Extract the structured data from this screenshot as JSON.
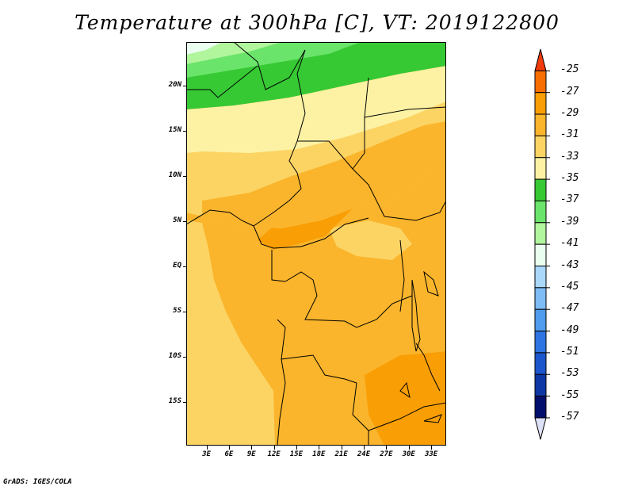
{
  "title": "Temperature at 300hPa [C], VT: 2019122800",
  "credit": "GrADS: IGES/COLA",
  "map": {
    "lat_labels": [
      "20N",
      "15N",
      "10N",
      "5N",
      "EQ",
      "5S",
      "10S",
      "15S"
    ],
    "lon_labels": [
      "3E",
      "6E",
      "9E",
      "12E",
      "15E",
      "18E",
      "21E",
      "24E",
      "27E",
      "30E",
      "33E"
    ],
    "lat_values": [
      20,
      15,
      10,
      5,
      0,
      -5,
      -10,
      -15
    ],
    "lon_values": [
      3,
      6,
      9,
      12,
      15,
      18,
      21,
      24,
      27,
      30,
      33
    ],
    "lon_range": [
      0.3,
      35
    ],
    "lat_range": [
      -19.8,
      24.8
    ]
  },
  "colorbar": {
    "labels": [
      "-25",
      "-27",
      "-29",
      "-31",
      "-33",
      "-35",
      "-37",
      "-39",
      "-41",
      "-43",
      "-45",
      "-47",
      "-49",
      "-51",
      "-53",
      "-55",
      "-57"
    ],
    "colors": [
      "#f03b0a",
      "#f86e00",
      "#f99e05",
      "#fab52c",
      "#fcd464",
      "#fdf2a4",
      "#36c934",
      "#6ae46a",
      "#b1f59d",
      "#eaffef",
      "#a9d8fb",
      "#7dbcf5",
      "#4f9bed",
      "#2e75e3",
      "#1b56cc",
      "#0e37a6",
      "#030f6d",
      "#dde1f8"
    ]
  },
  "fill_colors": {
    "deep_orange": "#f99e05",
    "orange": "#fab52c",
    "yellow": "#fcd464",
    "pale_yellow": "#fdf2a4",
    "green": "#36c934",
    "mid_green": "#6ae46a",
    "light_green": "#b1f59d",
    "near_white": "#eaffef"
  }
}
